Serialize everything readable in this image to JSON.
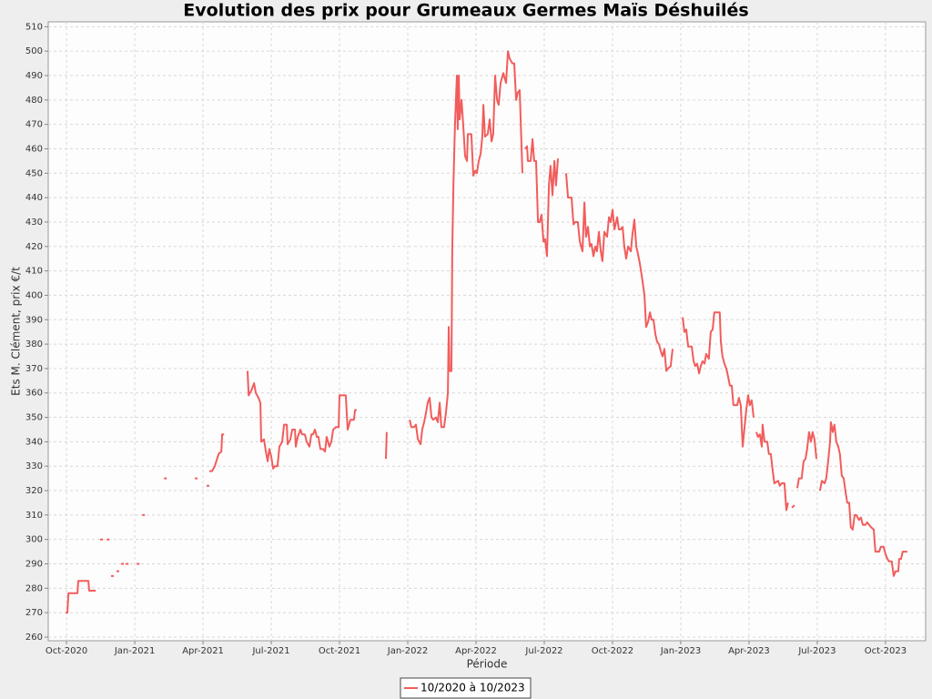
{
  "chart_data": {
    "type": "line",
    "title": "Evolution des prix pour Grumeaux Germes Maïs Déshuilés",
    "xlabel": "Période",
    "ylabel": "Ets M. Clément, prix €/t",
    "grid": true,
    "legend": "bottom",
    "xlim": [
      2020.683,
      2023.897
    ],
    "ylim": [
      258.5,
      512
    ],
    "xticks": [
      {
        "value": 2020.75,
        "label": "Oct-2020"
      },
      {
        "value": 2021.0,
        "label": "Jan-2021"
      },
      {
        "value": 2021.25,
        "label": "Apr-2021"
      },
      {
        "value": 2021.5,
        "label": "Jul-2021"
      },
      {
        "value": 2021.75,
        "label": "Oct-2021"
      },
      {
        "value": 2022.0,
        "label": "Jan-2022"
      },
      {
        "value": 2022.25,
        "label": "Apr-2022"
      },
      {
        "value": 2022.5,
        "label": "Jul-2022"
      },
      {
        "value": 2022.75,
        "label": "Oct-2022"
      },
      {
        "value": 2023.0,
        "label": "Jan-2023"
      },
      {
        "value": 2023.25,
        "label": "Apr-2023"
      },
      {
        "value": 2023.5,
        "label": "Jul-2023"
      },
      {
        "value": 2023.75,
        "label": "Oct-2023"
      }
    ],
    "yticks": [
      260,
      270,
      280,
      290,
      300,
      310,
      320,
      330,
      340,
      350,
      360,
      370,
      380,
      390,
      400,
      410,
      420,
      430,
      440,
      450,
      460,
      470,
      480,
      490,
      500,
      510
    ],
    "x": [
      2020.747,
      2020.753,
      2020.757,
      2020.79,
      2020.793,
      2020.83,
      2020.833,
      2020.857,
      null,
      2020.873,
      null,
      2020.897,
      null,
      2020.913,
      null,
      2020.933,
      null,
      2020.95,
      null,
      2020.967,
      null,
      2021.007,
      null,
      2021.027,
      null,
      2021.107,
      null,
      2021.22,
      null,
      2021.263,
      null,
      2021.273,
      2021.283,
      2021.293,
      2021.307,
      2021.317,
      2021.32,
      2021.327,
      null,
      2021.413,
      2021.417,
      2021.427,
      2021.437,
      2021.443,
      2021.453,
      2021.46,
      2021.463,
      2021.473,
      2021.48,
      2021.487,
      2021.493,
      2021.5,
      2021.507,
      2021.513,
      2021.523,
      2021.53,
      2021.54,
      2021.547,
      2021.557,
      2021.56,
      2021.57,
      2021.577,
      2021.587,
      2021.59,
      2021.597,
      2021.607,
      2021.613,
      2021.623,
      2021.63,
      2021.64,
      2021.647,
      2021.653,
      2021.66,
      2021.667,
      2021.673,
      2021.68,
      2021.69,
      2021.697,
      2021.703,
      2021.713,
      2021.72,
      2021.727,
      2021.737,
      2021.747,
      2021.75,
      2021.773,
      2021.78,
      2021.79,
      2021.803,
      2021.807,
      2021.813,
      null,
      2021.92,
      2021.923,
      null,
      2022.007,
      2022.013,
      2022.023,
      2022.03,
      2022.037,
      2022.047,
      2022.053,
      2022.06,
      2022.067,
      2022.073,
      2022.08,
      2022.087,
      2022.093,
      2022.103,
      2022.11,
      2022.117,
      2022.123,
      2022.133,
      2022.14,
      2022.147,
      2022.15,
      2022.153,
      2022.16,
      2022.163,
      2022.167,
      2022.173,
      2022.18,
      2022.183,
      2022.187,
      2022.19,
      2022.197,
      2022.203,
      2022.21,
      2022.217,
      2022.22,
      2022.233,
      2022.24,
      2022.247,
      2022.253,
      2022.26,
      2022.267,
      2022.273,
      2022.277,
      2022.283,
      2022.293,
      2022.3,
      2022.307,
      2022.313,
      2022.32,
      2022.327,
      2022.333,
      2022.34,
      2022.35,
      2022.36,
      2022.367,
      2022.373,
      2022.383,
      2022.39,
      2022.397,
      2022.403,
      2022.41,
      2022.417,
      2022.42,
      null,
      2022.43,
      2022.437,
      2022.44,
      2022.45,
      2022.457,
      2022.463,
      2022.47,
      2022.477,
      2022.483,
      2022.49,
      2022.497,
      2022.503,
      2022.51,
      2022.517,
      2022.523,
      2022.53,
      2022.537,
      2022.543,
      2022.55,
      null,
      2022.58,
      2022.587,
      2022.6,
      2022.607,
      2022.613,
      2022.623,
      2022.63,
      2022.64,
      2022.647,
      2022.653,
      2022.66,
      2022.667,
      2022.673,
      2022.68,
      2022.687,
      2022.693,
      2022.7,
      2022.707,
      2022.713,
      2022.72,
      2022.73,
      2022.737,
      2022.743,
      2022.75,
      2022.757,
      2022.767,
      2022.773,
      2022.78,
      2022.787,
      2022.793,
      2022.8,
      2022.807,
      2022.817,
      2022.823,
      2022.83,
      2022.837,
      2022.843,
      2022.85,
      2022.857,
      2022.867,
      2022.873,
      2022.88,
      2022.887,
      2022.893,
      2022.9,
      2022.907,
      2022.913,
      2022.92,
      2022.927,
      2022.933,
      2022.94,
      2022.947,
      2022.953,
      2022.963,
      2022.97,
      null,
      2023.007,
      2023.013,
      2023.02,
      2023.027,
      2023.04,
      2023.047,
      2023.053,
      2023.06,
      2023.067,
      2023.073,
      2023.08,
      2023.087,
      2023.093,
      2023.103,
      2023.11,
      2023.117,
      2023.123,
      2023.143,
      2023.147,
      2023.153,
      2023.16,
      2023.167,
      2023.173,
      2023.18,
      2023.187,
      2023.193,
      2023.207,
      2023.213,
      2023.22,
      2023.227,
      2023.233,
      2023.24,
      2023.247,
      2023.253,
      2023.26,
      2023.267,
      null,
      2023.277,
      2023.283,
      2023.29,
      2023.297,
      2023.3,
      2023.307,
      2023.317,
      2023.323,
      2023.33,
      2023.337,
      2023.343,
      2023.357,
      2023.363,
      2023.37,
      2023.38,
      2023.387,
      2023.393,
      null,
      2023.407,
      2023.417,
      null,
      2023.427,
      2023.433,
      2023.443,
      2023.45,
      2023.457,
      2023.463,
      2023.47,
      2023.477,
      2023.483,
      2023.49,
      2023.497,
      null,
      2023.51,
      2023.517,
      2023.527,
      2023.533,
      2023.54,
      2023.547,
      2023.55,
      2023.557,
      2023.563,
      2023.57,
      2023.577,
      2023.583,
      2023.59,
      2023.597,
      2023.603,
      2023.61,
      2023.617,
      2023.623,
      2023.63,
      2023.637,
      2023.643,
      2023.653,
      2023.66,
      2023.667,
      2023.677,
      2023.683,
      2023.69,
      2023.697,
      2023.707,
      2023.713,
      2023.727,
      2023.733,
      2023.743,
      2023.75,
      2023.757,
      2023.763,
      2023.773,
      2023.78,
      2023.787,
      2023.797,
      2023.8,
      2023.807,
      2023.813,
      2023.83
    ],
    "series": [
      {
        "name": "10/2020 à 10/2023",
        "color": "#f25c5c",
        "values": [
          270,
          270,
          278,
          278,
          283,
          283,
          279,
          279,
          null,
          300,
          null,
          300,
          null,
          285,
          null,
          287,
          null,
          290,
          null,
          290,
          null,
          290,
          null,
          310,
          null,
          325,
          null,
          325,
          null,
          322,
          null,
          328,
          328,
          330,
          335,
          336,
          343,
          343,
          null,
          369,
          359,
          361,
          364,
          360,
          358,
          356,
          340,
          341,
          336,
          332,
          337,
          334,
          329,
          330,
          330,
          338,
          340,
          347,
          347,
          339,
          341,
          345,
          345,
          338,
          342,
          345,
          343,
          343,
          340,
          338,
          343,
          343,
          345,
          342,
          342,
          337,
          337,
          336,
          342,
          338,
          340,
          345,
          346,
          346,
          359,
          359,
          345,
          349,
          349,
          353,
          353,
          null,
          333,
          344,
          null,
          349,
          346,
          346,
          347,
          341,
          339,
          345,
          348,
          352,
          356,
          358,
          350,
          349,
          350,
          348,
          356,
          346,
          346,
          352,
          360,
          387,
          369,
          369,
          418,
          444,
          470,
          490,
          468,
          490,
          472,
          480,
          470,
          457,
          455,
          466,
          466,
          449,
          451,
          450,
          455,
          458,
          465,
          478,
          465,
          466,
          472,
          463,
          466,
          490,
          480,
          478,
          487,
          491,
          487,
          500,
          497,
          495,
          495,
          480,
          483,
          484,
          460,
          450,
          null,
          460,
          461,
          455,
          455,
          464,
          455,
          455,
          430,
          430,
          433,
          422,
          423,
          416,
          445,
          453,
          441,
          455,
          445,
          456,
          null,
          450,
          440,
          440,
          429,
          430,
          430,
          422,
          418,
          438,
          424,
          428,
          420,
          421,
          416,
          420,
          418,
          426,
          418,
          414,
          426,
          424,
          432,
          430,
          435,
          427,
          432,
          427,
          427,
          428,
          420,
          415,
          420,
          418,
          425,
          431,
          420,
          417,
          413,
          408,
          400,
          387,
          389,
          393,
          390,
          390,
          384,
          381,
          380,
          377,
          375,
          378,
          369,
          370,
          371,
          378,
          null,
          391,
          385,
          386,
          379,
          379,
          373,
          371,
          372,
          368,
          371,
          373,
          372,
          376,
          374,
          385,
          386,
          393,
          393,
          381,
          375,
          372,
          370,
          367,
          363,
          363,
          355,
          355,
          358,
          355,
          338,
          345,
          353,
          359,
          355,
          357,
          350,
          null,
          344,
          342,
          343,
          338,
          347,
          340,
          340,
          335,
          335,
          328,
          323,
          324,
          322,
          323,
          323,
          312,
          315,
          null,
          313,
          314,
          null,
          321,
          325,
          325,
          332,
          333,
          337,
          344,
          340,
          344,
          341,
          333,
          null,
          320,
          324,
          323,
          325,
          332,
          340,
          348,
          344,
          347,
          340,
          338,
          335,
          326,
          325,
          320,
          315,
          315,
          305,
          304,
          310,
          310,
          308,
          309,
          306,
          306,
          307,
          306,
          305,
          304,
          295,
          295,
          297,
          297,
          294,
          292,
          291,
          291,
          285,
          287,
          287,
          292,
          292,
          295,
          295
        ]
      }
    ]
  }
}
